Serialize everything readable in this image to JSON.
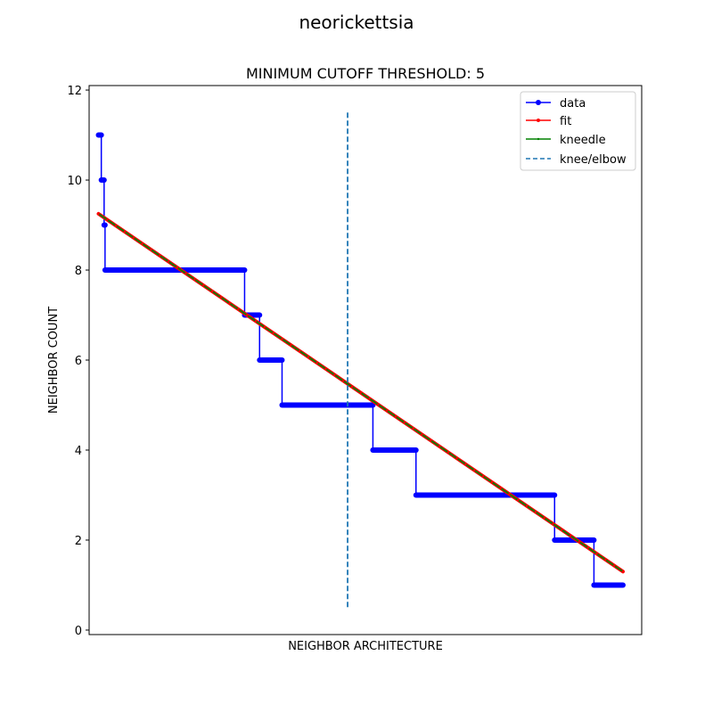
{
  "chart_data": {
    "type": "line",
    "suptitle": "neorickettsia",
    "title": "MINIMUM CUTOFF THRESHOLD: 5",
    "xlabel": "NEIGHBOR ARCHITECTURE",
    "ylabel": "NEIGHBOR COUNT",
    "xlim": [
      -10,
      580
    ],
    "ylim": [
      -0.1,
      12.1
    ],
    "xticks_shown": false,
    "yticks": [
      0,
      2,
      4,
      6,
      8,
      10,
      12
    ],
    "legend_position": "top-right",
    "colors": {
      "data": "#0000ff",
      "fit": "#ff0000",
      "kneedle": "#008000",
      "knee": "#1f77b4"
    },
    "series": [
      {
        "name": "data",
        "steps": [
          {
            "x_start": 0,
            "x_end": 3,
            "y": 11
          },
          {
            "x_start": 3,
            "x_end": 6,
            "y": 10
          },
          {
            "x_start": 6,
            "x_end": 7,
            "y": 9
          },
          {
            "x_start": 7,
            "x_end": 156,
            "y": 8
          },
          {
            "x_start": 156,
            "x_end": 172,
            "y": 7
          },
          {
            "x_start": 172,
            "x_end": 196,
            "y": 6
          },
          {
            "x_start": 196,
            "x_end": 293,
            "y": 5
          },
          {
            "x_start": 293,
            "x_end": 339,
            "y": 4
          },
          {
            "x_start": 339,
            "x_end": 487,
            "y": 3
          },
          {
            "x_start": 487,
            "x_end": 529,
            "y": 2
          },
          {
            "x_start": 529,
            "x_end": 560,
            "y": 1
          }
        ]
      },
      {
        "name": "fit",
        "x": [
          0,
          560
        ],
        "y": [
          9.25,
          1.3
        ]
      },
      {
        "name": "kneedle",
        "x": [
          0,
          560
        ],
        "y": [
          9.25,
          1.3
        ]
      },
      {
        "name": "knee/elbow",
        "x": 266,
        "y_range": [
          0.5,
          11.5
        ]
      }
    ]
  }
}
